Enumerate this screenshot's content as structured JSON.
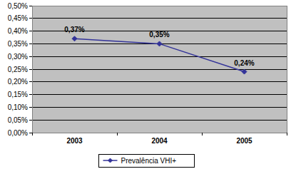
{
  "chart_data": {
    "type": "line",
    "categories": [
      "2003",
      "2004",
      "2005"
    ],
    "series": [
      {
        "name": "Prevalência VHI+",
        "color": "#333399",
        "marker": "diamond",
        "values": [
          0.37,
          0.35,
          0.24
        ],
        "value_labels": [
          "0,37%",
          "0,35%",
          "0,24%"
        ]
      }
    ],
    "ylim": [
      0,
      0.5
    ],
    "yticks": [
      {
        "value": 0,
        "label": "0,00%"
      },
      {
        "value": 0.05,
        "label": "0,05%"
      },
      {
        "value": 0.1,
        "label": "0,10%"
      },
      {
        "value": 0.15,
        "label": "0,15%"
      },
      {
        "value": 0.2,
        "label": "0,20%"
      },
      {
        "value": 0.25,
        "label": "0,25%"
      },
      {
        "value": 0.3,
        "label": "0,30%"
      },
      {
        "value": 0.35,
        "label": "0,35%"
      },
      {
        "value": 0.4,
        "label": "0,40%"
      },
      {
        "value": 0.45,
        "label": "0,45%"
      },
      {
        "value": 0.5,
        "label": "0,50%"
      }
    ],
    "grid": true,
    "data_labels": true,
    "legend": "bottom"
  }
}
